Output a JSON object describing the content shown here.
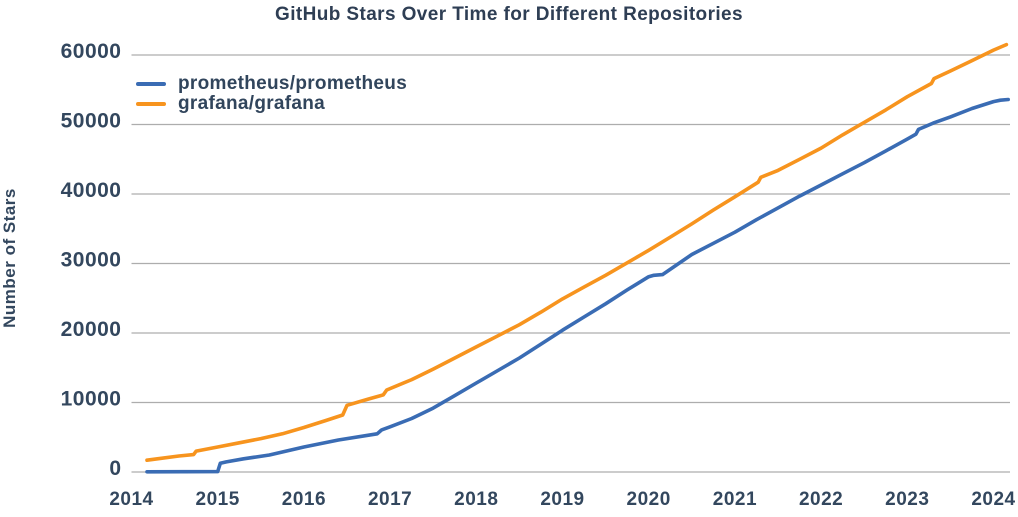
{
  "page": {
    "background": "#ffffff"
  },
  "chart_data": {
    "type": "line",
    "title": "GitHub Stars Over Time for Different Repositories",
    "xlabel": "",
    "ylabel": "Number of Stars",
    "x_ticks": [
      2014,
      2015,
      2016,
      2017,
      2018,
      2019,
      2020,
      2021,
      2022,
      2023,
      2024
    ],
    "y_ticks": [
      0,
      10000,
      20000,
      30000,
      40000,
      50000,
      60000
    ],
    "xlim": [
      2014,
      2024.2
    ],
    "ylim": [
      0,
      60000
    ],
    "grid": "horizontal-only",
    "gridline_color": "#ADADAD",
    "text_color": "#33475E",
    "title_color": "#2E3E54",
    "legend_position": "top-left-inside",
    "series": [
      {
        "name": "prometheus/prometheus",
        "color": "#3A6CB4",
        "points": [
          [
            2014.18,
            30
          ],
          [
            2014.6,
            40
          ],
          [
            2015.0,
            60
          ],
          [
            2015.03,
            1250
          ],
          [
            2015.1,
            1450
          ],
          [
            2015.3,
            1900
          ],
          [
            2015.6,
            2450
          ],
          [
            2016.0,
            3600
          ],
          [
            2016.4,
            4600
          ],
          [
            2016.85,
            5500
          ],
          [
            2016.9,
            6050
          ],
          [
            2017.0,
            6500
          ],
          [
            2017.25,
            7700
          ],
          [
            2017.5,
            9200
          ],
          [
            2017.75,
            11000
          ],
          [
            2018.0,
            12800
          ],
          [
            2018.25,
            14600
          ],
          [
            2018.5,
            16400
          ],
          [
            2018.75,
            18400
          ],
          [
            2019.0,
            20400
          ],
          [
            2019.25,
            22300
          ],
          [
            2019.5,
            24200
          ],
          [
            2019.75,
            26200
          ],
          [
            2020.0,
            28100
          ],
          [
            2020.06,
            28300
          ],
          [
            2020.16,
            28400
          ],
          [
            2020.5,
            31300
          ],
          [
            2020.75,
            32900
          ],
          [
            2021.0,
            34500
          ],
          [
            2021.25,
            36300
          ],
          [
            2021.5,
            38000
          ],
          [
            2021.75,
            39700
          ],
          [
            2022.0,
            41300
          ],
          [
            2022.25,
            42900
          ],
          [
            2022.5,
            44500
          ],
          [
            2022.75,
            46200
          ],
          [
            2023.0,
            47900
          ],
          [
            2023.1,
            48600
          ],
          [
            2023.13,
            49300
          ],
          [
            2023.3,
            50200
          ],
          [
            2023.5,
            51100
          ],
          [
            2023.75,
            52300
          ],
          [
            2024.0,
            53300
          ],
          [
            2024.08,
            53500
          ],
          [
            2024.17,
            53600
          ]
        ]
      },
      {
        "name": "grafana/grafana",
        "color": "#F7941E",
        "points": [
          [
            2014.18,
            1700
          ],
          [
            2014.3,
            1900
          ],
          [
            2014.55,
            2300
          ],
          [
            2014.72,
            2500
          ],
          [
            2014.75,
            3000
          ],
          [
            2015.0,
            3600
          ],
          [
            2015.25,
            4200
          ],
          [
            2015.5,
            4800
          ],
          [
            2015.75,
            5500
          ],
          [
            2016.0,
            6400
          ],
          [
            2016.25,
            7400
          ],
          [
            2016.45,
            8200
          ],
          [
            2016.5,
            9600
          ],
          [
            2016.75,
            10500
          ],
          [
            2016.92,
            11100
          ],
          [
            2016.96,
            11800
          ],
          [
            2017.25,
            13300
          ],
          [
            2017.5,
            14800
          ],
          [
            2017.75,
            16400
          ],
          [
            2018.0,
            18000
          ],
          [
            2018.25,
            19600
          ],
          [
            2018.5,
            21200
          ],
          [
            2018.75,
            23000
          ],
          [
            2019.0,
            24900
          ],
          [
            2019.25,
            26600
          ],
          [
            2019.5,
            28300
          ],
          [
            2019.75,
            30100
          ],
          [
            2020.0,
            31900
          ],
          [
            2020.25,
            33800
          ],
          [
            2020.5,
            35700
          ],
          [
            2020.75,
            37700
          ],
          [
            2021.0,
            39600
          ],
          [
            2021.27,
            41700
          ],
          [
            2021.3,
            42400
          ],
          [
            2021.5,
            43400
          ],
          [
            2021.75,
            45000
          ],
          [
            2022.0,
            46600
          ],
          [
            2022.25,
            48500
          ],
          [
            2022.5,
            50300
          ],
          [
            2022.75,
            52100
          ],
          [
            2023.0,
            54000
          ],
          [
            2023.28,
            55900
          ],
          [
            2023.31,
            56600
          ],
          [
            2023.5,
            57700
          ],
          [
            2023.75,
            59200
          ],
          [
            2024.0,
            60700
          ],
          [
            2024.15,
            61500
          ]
        ]
      }
    ]
  }
}
